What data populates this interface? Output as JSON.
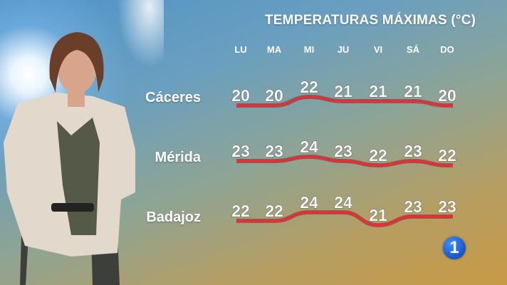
{
  "chart_data": {
    "type": "line",
    "title": "TEMPERATURAS MÁXIMAS (°C)",
    "categories": [
      "LU",
      "MA",
      "MI",
      "JU",
      "VI",
      "SÁ",
      "DO"
    ],
    "series": [
      {
        "name": "Cáceres",
        "values": [
          20,
          20,
          22,
          21,
          21,
          21,
          20
        ]
      },
      {
        "name": "Mérida",
        "values": [
          23,
          23,
          24,
          23,
          22,
          23,
          22
        ]
      },
      {
        "name": "Badajoz",
        "values": [
          22,
          22,
          24,
          24,
          21,
          23,
          23
        ]
      }
    ],
    "line_color": "#e0303a",
    "data_labels": true,
    "grid": false
  },
  "logo": {
    "text": "1",
    "color": "#1a5fd8"
  }
}
